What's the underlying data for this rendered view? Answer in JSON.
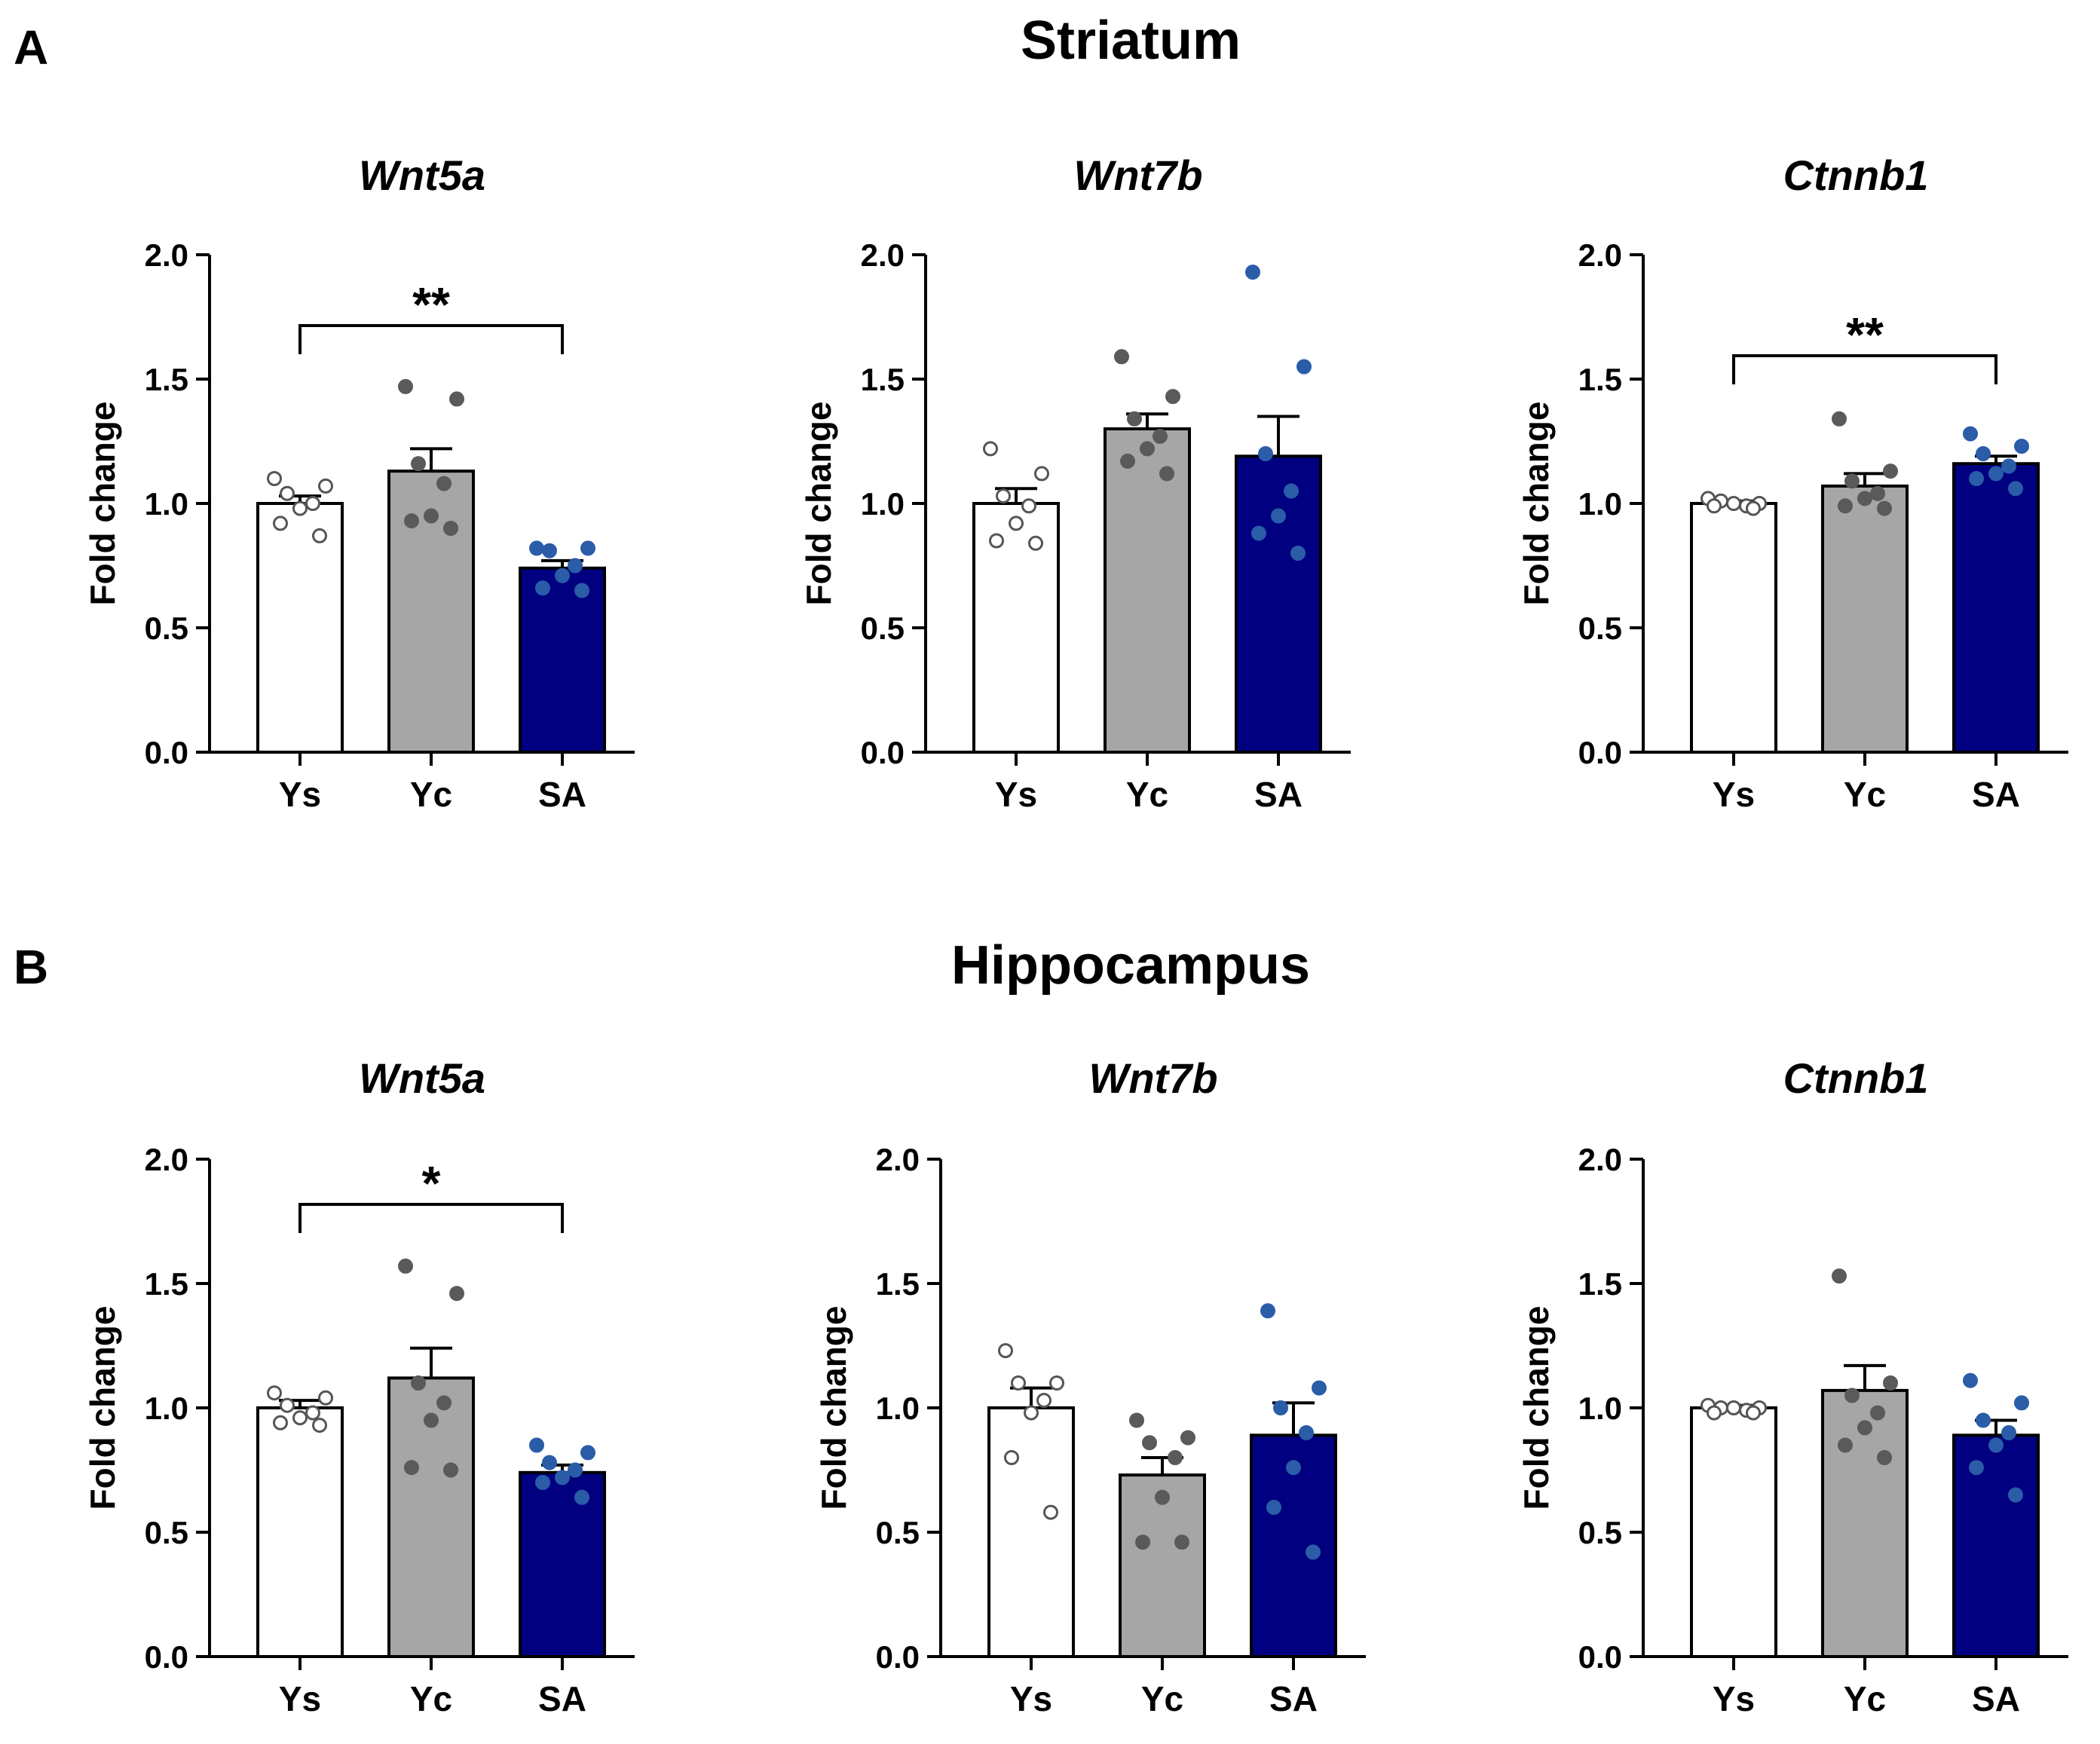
{
  "sections": [
    {
      "letter": "A",
      "title": "Striatum"
    },
    {
      "letter": "B",
      "title": "Hippocampus"
    }
  ],
  "colors": {
    "Ys": "#ffffff",
    "Yc": "#a6a6a6",
    "SA": "#000080",
    "Ys_point": "#ffffff",
    "Yc_point": "#5a5a5a",
    "SA_point": "#2a5ca8",
    "axis": "#000000"
  },
  "chart_data": [
    {
      "type": "bar",
      "section": "Striatum",
      "title": "Wnt5a",
      "ylabel": "Fold change",
      "categories": [
        "Ys",
        "Yc",
        "SA"
      ],
      "ylim": [
        0,
        2.0
      ],
      "yticks": [
        "0.0",
        "0.5",
        "1.0",
        "1.5",
        "2.0"
      ],
      "values": [
        1.0,
        1.13,
        0.74
      ],
      "sem": [
        0.03,
        0.09,
        0.03
      ],
      "points": [
        [
          1.1,
          1.07,
          1.04,
          1.0,
          0.98,
          0.92,
          0.87
        ],
        [
          1.47,
          1.42,
          1.16,
          1.08,
          0.95,
          0.93,
          0.9
        ],
        [
          0.82,
          0.82,
          0.81,
          0.75,
          0.71,
          0.66,
          0.65
        ]
      ],
      "significance": [
        {
          "from": "Ys",
          "to": "SA",
          "label": "**"
        }
      ]
    },
    {
      "type": "bar",
      "section": "Striatum",
      "title": "Wnt7b",
      "ylabel": "Fold change",
      "categories": [
        "Ys",
        "Yc",
        "SA"
      ],
      "ylim": [
        0,
        2.0
      ],
      "yticks": [
        "0.0",
        "0.5",
        "1.0",
        "1.5",
        "2.0"
      ],
      "values": [
        1.0,
        1.3,
        1.19
      ],
      "sem": [
        0.06,
        0.06,
        0.16
      ],
      "points": [
        [
          1.22,
          1.12,
          1.03,
          0.99,
          0.92,
          0.85,
          0.84
        ],
        [
          1.59,
          1.43,
          1.34,
          1.27,
          1.22,
          1.17,
          1.12
        ],
        [
          1.93,
          1.55,
          1.2,
          1.05,
          0.95,
          0.88,
          0.8
        ]
      ],
      "significance": []
    },
    {
      "type": "bar",
      "section": "Striatum",
      "title": "Ctnnb1",
      "ylabel": "Fold change",
      "categories": [
        "Ys",
        "Yc",
        "SA"
      ],
      "ylim": [
        0,
        2.0
      ],
      "yticks": [
        "0.0",
        "0.5",
        "1.0",
        "1.5",
        "2.0"
      ],
      "values": [
        1.0,
        1.07,
        1.16
      ],
      "sem": [
        0.01,
        0.05,
        0.03
      ],
      "points": [
        [
          1.02,
          1.0,
          1.01,
          0.99,
          1.0,
          0.99,
          0.98
        ],
        [
          1.34,
          1.13,
          1.09,
          1.04,
          1.02,
          0.99,
          0.98
        ],
        [
          1.28,
          1.23,
          1.2,
          1.15,
          1.12,
          1.1,
          1.06
        ]
      ],
      "significance": [
        {
          "from": "Ys",
          "to": "SA",
          "label": "**"
        }
      ]
    },
    {
      "type": "bar",
      "section": "Hippocampus",
      "title": "Wnt5a",
      "ylabel": "Fold change",
      "categories": [
        "Ys",
        "Yc",
        "SA"
      ],
      "ylim": [
        0,
        2.0
      ],
      "yticks": [
        "0.0",
        "0.5",
        "1.0",
        "1.5",
        "2.0"
      ],
      "values": [
        1.0,
        1.12,
        0.74
      ],
      "sem": [
        0.03,
        0.12,
        0.03
      ],
      "points": [
        [
          1.06,
          1.04,
          1.01,
          0.98,
          0.96,
          0.94,
          0.93
        ],
        [
          1.57,
          1.46,
          1.1,
          1.02,
          0.95,
          0.76,
          0.75
        ],
        [
          0.85,
          0.82,
          0.78,
          0.75,
          0.72,
          0.7,
          0.64
        ]
      ],
      "significance": [
        {
          "from": "Ys",
          "to": "SA",
          "label": "*"
        }
      ]
    },
    {
      "type": "bar",
      "section": "Hippocampus",
      "title": "Wnt7b",
      "ylabel": "Fold change",
      "categories": [
        "Ys",
        "Yc",
        "SA"
      ],
      "ylim": [
        0,
        2.0
      ],
      "yticks": [
        "0.0",
        "0.5",
        "1.0",
        "1.5",
        "2.0"
      ],
      "values": [
        1.0,
        0.73,
        0.89
      ],
      "sem": [
        0.08,
        0.07,
        0.13
      ],
      "points": [
        [
          1.23,
          1.1,
          1.1,
          1.03,
          0.98,
          0.8,
          0.58
        ],
        [
          0.95,
          0.88,
          0.86,
          0.8,
          0.64,
          0.46,
          0.46
        ],
        [
          1.39,
          1.08,
          1.0,
          0.9,
          0.76,
          0.6,
          0.42
        ]
      ],
      "significance": []
    },
    {
      "type": "bar",
      "section": "Hippocampus",
      "title": "Ctnnb1",
      "ylabel": "Fold change",
      "categories": [
        "Ys",
        "Yc",
        "SA"
      ],
      "ylim": [
        0,
        2.0
      ],
      "yticks": [
        "0.0",
        "0.5",
        "1.0",
        "1.5",
        "2.0"
      ],
      "values": [
        1.0,
        1.07,
        0.89
      ],
      "sem": [
        0.01,
        0.1,
        0.06
      ],
      "points": [
        [
          1.01,
          1.0,
          1.0,
          0.99,
          1.0,
          0.98,
          0.98
        ],
        [
          1.53,
          1.1,
          1.05,
          0.98,
          0.92,
          0.85,
          0.8
        ],
        [
          1.11,
          1.02,
          0.95,
          0.9,
          0.85,
          0.76,
          0.65
        ]
      ],
      "significance": []
    }
  ]
}
